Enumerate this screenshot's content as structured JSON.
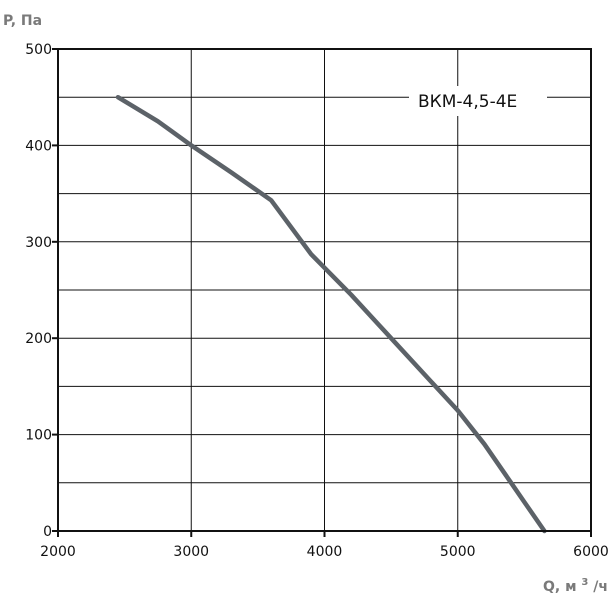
{
  "chart_data": {
    "type": "line",
    "ylabel": "P, Па",
    "xlabel_main": "Q, м",
    "xlabel_sup": "3",
    "xlabel_tail": "/ч",
    "xlim": [
      2000,
      6000
    ],
    "ylim": [
      0,
      500
    ],
    "xticks": [
      2000,
      3000,
      4000,
      5000,
      6000
    ],
    "yticks": [
      0,
      100,
      200,
      300,
      400,
      500
    ],
    "x_minor_grid": [
      2000,
      3000,
      4000,
      5000,
      6000
    ],
    "y_minor_grid": [
      50,
      150,
      250,
      350,
      450
    ],
    "grid": true,
    "series": [
      {
        "name": "ВКМ-4,5-4Е",
        "color": "#5c6268",
        "x": [
          2450,
          2750,
          3000,
          3300,
          3600,
          3900,
          4200,
          4500,
          4800,
          5000,
          5200,
          5400,
          5500,
          5650
        ],
        "y": [
          450,
          425,
          400,
          372,
          343,
          287,
          245,
          200,
          155,
          125,
          90,
          50,
          30,
          0
        ]
      }
    ]
  }
}
